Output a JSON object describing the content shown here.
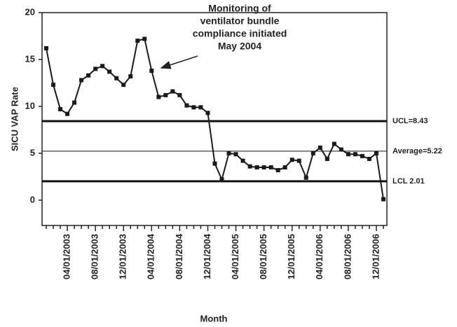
{
  "chart_data": {
    "type": "line",
    "y_label": "SICU VAP Rate",
    "x_label": "Month",
    "categories": [
      null,
      null,
      null,
      "04/01/2003",
      null,
      null,
      null,
      "08/01/2003",
      null,
      null,
      null,
      "12/01/2003",
      null,
      null,
      null,
      "04/01/2004",
      null,
      null,
      null,
      "08/01/2004",
      null,
      null,
      null,
      "12/01/2004",
      null,
      null,
      null,
      "04/01/2005",
      null,
      null,
      null,
      "08/01/2005",
      null,
      null,
      null,
      "12/01/2005",
      null,
      null,
      null,
      "04/01/2006",
      null,
      null,
      null,
      "08/01/2006",
      null,
      null,
      null,
      "12/01/2006",
      null
    ],
    "series": [
      {
        "color": "#1a1a1a",
        "values": [
          16.2,
          12.3,
          9.7,
          9.2,
          10.4,
          12.8,
          13.3,
          14.0,
          14.3,
          13.7,
          13.0,
          12.3,
          13.2,
          17.0,
          17.2,
          13.8,
          11.0,
          11.2,
          11.6,
          11.2,
          10.1,
          9.9,
          9.9,
          9.3,
          3.9,
          2.2,
          5.0,
          4.9,
          4.2,
          3.6,
          3.5,
          3.5,
          3.5,
          3.2,
          3.5,
          4.3,
          4.2,
          2.4,
          5.0,
          5.6,
          4.4,
          6.0,
          5.4,
          4.9,
          4.9,
          4.7,
          4.4,
          5.0,
          0.1
        ]
      }
    ],
    "ylim": [
      -2.7,
      20
    ],
    "yticks": [
      0,
      5,
      10,
      15,
      20
    ],
    "reference_lines": [
      {
        "label": "UCL=8.43",
        "value": 8.43,
        "thick": true
      },
      {
        "label": "Average=5.22",
        "value": 5.22,
        "thick": false
      },
      {
        "label": "LCL 2.01",
        "value": 2.01,
        "thick": true
      }
    ],
    "annotation": [
      "Monitoring of",
      "ventilator bundle",
      "compliance initiated",
      "May 2004"
    ]
  }
}
